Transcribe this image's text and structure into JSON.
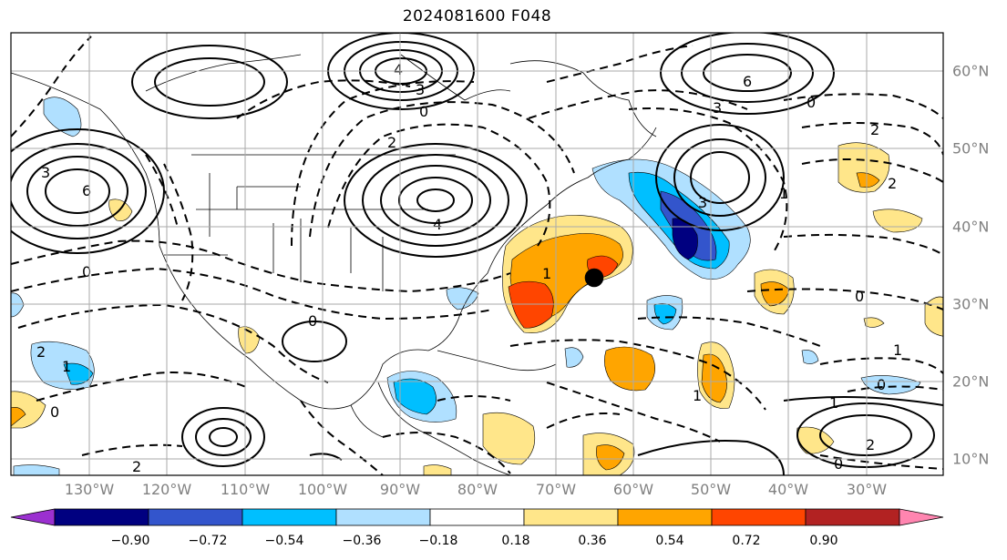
{
  "title": "2024081600 F048",
  "lon_labels": [
    "130°W",
    "120°W",
    "110°W",
    "100°W",
    "90°W",
    "80°W",
    "70°W",
    "60°W",
    "50°W",
    "40°W",
    "30°W"
  ],
  "lat_labels": [
    "60°N",
    "50°N",
    "40°N",
    "30°N",
    "20°N",
    "10°N"
  ],
  "colorbar": {
    "ticks": [
      "−0.90",
      "−0.72",
      "−0.54",
      "−0.36",
      "−0.18",
      "0.18",
      "0.36",
      "0.54",
      "0.72",
      "0.90"
    ],
    "colors": [
      "#9b30d0",
      "#000080",
      "#3355cc",
      "#00bfff",
      "#b0e0ff",
      "#ffffff",
      "#ffe68a",
      "#ffa500",
      "#ff4500",
      "#b22222",
      "#ff85b0"
    ]
  },
  "contour_labels": [
    "4",
    "3",
    "0",
    "2",
    "6",
    "3",
    "2",
    "0",
    "1",
    "1",
    "0",
    "6",
    "4",
    "3",
    "2",
    "0",
    "1",
    "3",
    "2",
    "0",
    "1",
    "2",
    "0",
    "1",
    "0",
    "1",
    "2",
    "0"
  ]
}
